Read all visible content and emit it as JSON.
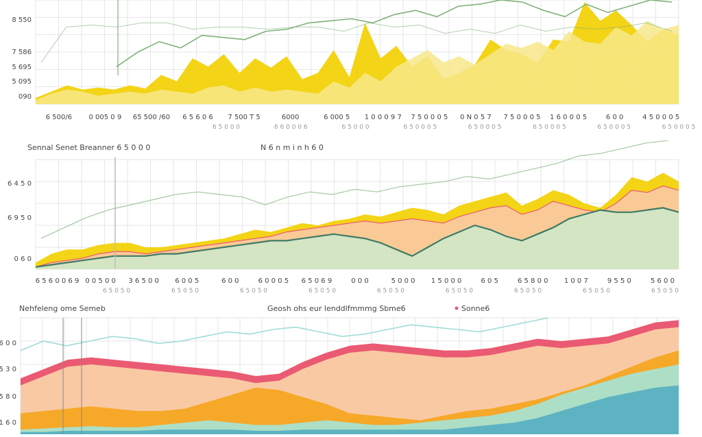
{
  "colors": {
    "yellow": "#f2d20a",
    "yellow_light": "#f7e88a",
    "green": "#7fb07a",
    "green_light": "#cfe8c9",
    "teal_dark": "#3f7a66",
    "teal_light": "#9fdcd6",
    "pink": "#ea5a72",
    "peach": "#f9c9a4",
    "orange": "#f5a623",
    "mint": "#a9e2cf",
    "blue": "#5ab0c2",
    "grid": "#e6e6e6"
  },
  "chart_data": [
    {
      "type": "area",
      "title": "",
      "y_tick_labels": [
        "8 550",
        "7 586",
        "5 695",
        "5 095",
        "090"
      ],
      "x_tick_labels": [
        "6 500/6",
        "0 005 0 9",
        "65 500 /60",
        "6 5 6 0 6",
        "7 500 T 5",
        "6000",
        "6 000 5",
        "1 0 0 0 9 7",
        "7 5 0 0 0 5",
        "0 N 0 5 7",
        "7 5 0 0 0 5",
        "1 6 0 0 0 5",
        "6 0 0",
        "4 5 0 0 0 5"
      ],
      "x_tick_sub_labels": [
        "6 5 0 0 0",
        "6 6 0 0 0 6",
        "6 5 0 0 0",
        "6 5 0 0 0 5",
        "6 5 0 0 0 5",
        "6 5 0 0 0 5",
        "6 5 0 0 0 5",
        "6 5 0 0 0 5"
      ],
      "ylim": [
        0,
        100
      ],
      "series": [
        {
          "values": [
            6,
            12,
            18,
            14,
            16,
            14,
            18,
            15,
            28,
            22,
            44,
            36,
            48,
            30,
            44,
            35,
            46,
            24,
            30,
            52,
            26,
            78,
            44,
            56,
            36,
            46,
            24,
            30,
            38,
            62,
            52,
            48,
            40,
            62,
            60,
            98,
            80,
            90,
            76,
            60,
            72,
            66
          ]
        },
        {
          "values": [
            4,
            10,
            14,
            12,
            8,
            10,
            12,
            10,
            14,
            12,
            10,
            16,
            18,
            12,
            16,
            12,
            14,
            12,
            10,
            22,
            16,
            30,
            22,
            36,
            44,
            52,
            40,
            46,
            38,
            48,
            58,
            54,
            60,
            52,
            70,
            60,
            58,
            74,
            66,
            80,
            72,
            76
          ]
        },
        {
          "values": [
            36,
            50,
            60,
            54,
            66,
            64,
            62,
            70,
            72,
            78,
            80,
            82,
            78,
            86,
            90,
            84,
            94,
            96,
            100,
            98,
            90,
            84,
            96,
            88,
            94,
            100,
            98
          ]
        },
        {
          "values": [
            40,
            74,
            76,
            74,
            78,
            78,
            72,
            74,
            74,
            72,
            74,
            74,
            70,
            78,
            74,
            76,
            68,
            72,
            68,
            76,
            70,
            74,
            72,
            74,
            78,
            70
          ]
        }
      ]
    },
    {
      "type": "area",
      "title": "Sennal Senet Breanner 6 5 0 0 0",
      "subtitle": "N 6 n m i n h 6 0",
      "y_tick_labels": [
        "6 4 5 0",
        "6 9 5 0",
        "0 6 0"
      ],
      "x_tick_labels": [
        "6 5 6 0 0 6 9",
        "0 0 5 0 0",
        "3 6 5 0 0",
        "6 0 0 5",
        "6 0 0",
        "6 0 0 0 5",
        "6 5 0 6 9",
        "0 0 0",
        "5 0 0 0",
        "1 5 0 0 0",
        "6 0 5",
        "6 5 8 0 0",
        "1 0 0 7",
        "9 5 5 0",
        "5 6 0 0"
      ],
      "x_tick_sub_labels": [
        "6 5 0 5 0",
        "6 5 0 5 0",
        "6 5 0 5 0",
        "6 5 0 5 0",
        "6 5 0 5 0",
        "6 5 0 5 0",
        "6 5 0 5 0",
        "6 5 0 5 0",
        "6 5 0 5 0"
      ],
      "ylim": [
        0,
        100
      ],
      "series": [
        {
          "values": [
            6,
            14,
            18,
            18,
            22,
            24,
            24,
            20,
            20,
            22,
            24,
            26,
            28,
            32,
            36,
            34,
            38,
            42,
            40,
            44,
            46,
            50,
            48,
            52,
            56,
            54,
            50,
            58,
            62,
            66,
            70,
            58,
            64,
            72,
            68,
            60,
            56,
            68,
            84,
            80,
            88,
            80
          ]
        },
        {
          "values": [
            2,
            6,
            8,
            10,
            14,
            16,
            16,
            14,
            16,
            18,
            20,
            22,
            24,
            26,
            28,
            30,
            34,
            36,
            38,
            40,
            42,
            44,
            42,
            44,
            46,
            44,
            42,
            48,
            52,
            56,
            58,
            50,
            54,
            62,
            58,
            54,
            52,
            60,
            72,
            70,
            76,
            72
          ]
        },
        {
          "values": [
            2,
            4,
            6,
            8,
            10,
            12,
            12,
            12,
            14,
            14,
            16,
            18,
            20,
            22,
            24,
            26,
            26,
            28,
            30,
            32,
            30,
            28,
            24,
            18,
            12,
            20,
            28,
            34,
            40,
            36,
            30,
            26,
            32,
            38,
            46,
            50,
            54,
            52,
            52,
            54,
            56,
            52
          ]
        },
        {
          "values": [
            24,
            32,
            40,
            46,
            50,
            54,
            58,
            60,
            58,
            56,
            50,
            56,
            60,
            58,
            62,
            60,
            64,
            66,
            68,
            72,
            70,
            74,
            78,
            82,
            88,
            90,
            94,
            98,
            100
          ]
        }
      ]
    },
    {
      "type": "area",
      "title": "Nehfeleng ome Semeb",
      "subtitle": "Geosh ohs eur lenddlfmmmg Sbme6",
      "legend": [
        "Sonne6"
      ],
      "y_tick_labels": [
        "6 0 0",
        "5 3 0",
        "5 8 0",
        "1 6 0"
      ],
      "ylim": [
        0,
        100
      ],
      "series": [
        {
          "values": [
            48,
            56,
            64,
            66,
            64,
            62,
            60,
            58,
            56,
            54,
            50,
            52,
            62,
            70,
            76,
            78,
            76,
            74,
            72,
            72,
            74,
            78,
            82,
            80,
            82,
            84,
            90,
            96,
            98
          ]
        },
        {
          "values": [
            18,
            20,
            22,
            24,
            22,
            20,
            20,
            22,
            28,
            34,
            40,
            38,
            32,
            26,
            18,
            16,
            14,
            12,
            16,
            20,
            22,
            26,
            30,
            36,
            42,
            50,
            58,
            66,
            72
          ]
        },
        {
          "values": [
            4,
            5,
            6,
            7,
            6,
            6,
            8,
            10,
            12,
            10,
            8,
            8,
            10,
            12,
            10,
            8,
            8,
            10,
            12,
            14,
            16,
            20,
            26,
            34,
            40,
            46,
            52,
            56,
            60
          ]
        },
        {
          "values": [
            2,
            2,
            3,
            3,
            3,
            3,
            4,
            4,
            4,
            4,
            3,
            3,
            4,
            4,
            4,
            4,
            4,
            4,
            4,
            6,
            8,
            10,
            14,
            20,
            26,
            32,
            36,
            40,
            42
          ]
        },
        {
          "values": [
            72,
            80,
            76,
            80,
            84,
            82,
            78,
            80,
            84,
            88,
            86,
            90,
            92,
            88,
            84,
            86,
            90,
            94,
            92,
            90,
            88,
            92,
            96,
            100
          ]
        }
      ]
    }
  ]
}
